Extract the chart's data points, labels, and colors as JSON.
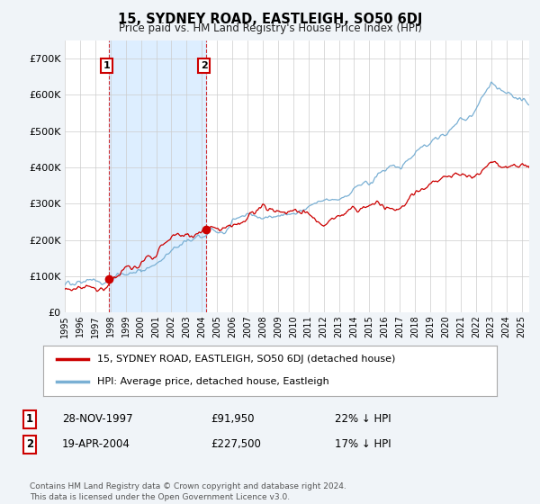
{
  "title": "15, SYDNEY ROAD, EASTLEIGH, SO50 6DJ",
  "subtitle": "Price paid vs. HM Land Registry's House Price Index (HPI)",
  "legend_line1": "15, SYDNEY ROAD, EASTLEIGH, SO50 6DJ (detached house)",
  "legend_line2": "HPI: Average price, detached house, Eastleigh",
  "transaction1_date": "28-NOV-1997",
  "transaction1_price": "£91,950",
  "transaction1_hpi": "22% ↓ HPI",
  "transaction1_year": 1997.91,
  "transaction1_value": 91950,
  "transaction2_date": "19-APR-2004",
  "transaction2_price": "£227,500",
  "transaction2_hpi": "17% ↓ HPI",
  "transaction2_year": 2004.29,
  "transaction2_value": 227500,
  "price_line_color": "#cc0000",
  "hpi_line_color": "#7ab0d4",
  "shade_color": "#ddeeff",
  "footer": "Contains HM Land Registry data © Crown copyright and database right 2024.\nThis data is licensed under the Open Government Licence v3.0.",
  "ylim": [
    0,
    750000
  ],
  "yticks": [
    0,
    100000,
    200000,
    300000,
    400000,
    500000,
    600000,
    700000
  ],
  "ytick_labels": [
    "£0",
    "£100K",
    "£200K",
    "£300K",
    "£400K",
    "£500K",
    "£600K",
    "£700K"
  ],
  "background_color": "#f0f4f8",
  "plot_bg_color": "#ffffff",
  "grid_color": "#cccccc",
  "xlim_start": 1995,
  "xlim_end": 2025.5
}
